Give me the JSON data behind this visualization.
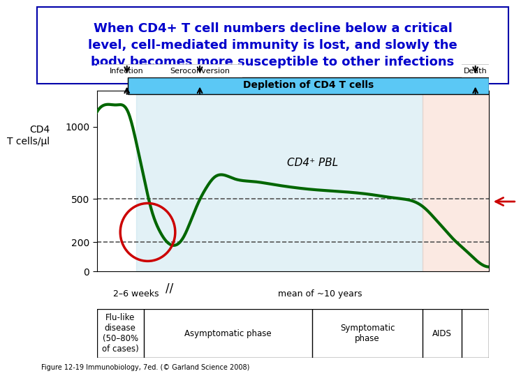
{
  "title_text": "When CD4+ T cell numbers decline below a critical\nlevel, cell-mediated immunity is lost, and slowly the\nbody becomes more susceptible to other infections",
  "title_color": "#0000cc",
  "title_fontsize": 13,
  "bg_color": "#ffffff",
  "ylabel": "CD4\nT cells/μl",
  "yticks": [
    0,
    200,
    500,
    1000
  ],
  "x_label_left": "2–6 weeks",
  "x_label_right": "mean of ~10 years",
  "phase_labels": [
    "Flu-like\ndisease\n(50–80%\nof cases)",
    "Asymptomatic phase",
    "Symptomatic\nphase",
    "AIDS"
  ],
  "depletion_label": "Depletion of CD4 T cells",
  "cd4_pbl_label": "CD4⁺ PBL",
  "infection_label": "Infection",
  "seroconversion_label": "Seroconversion",
  "death_label": "Death",
  "curve_color": "#006600",
  "curve_linewidth": 3,
  "dashed_color": "#555555",
  "light_blue": "#add8e6",
  "light_blue_alpha": 0.5,
  "light_red": "#f4b8a0",
  "arrow_color": "#cc0000",
  "circle_color": "#cc0000",
  "figure_caption": "Figure 12-19 Immunobiology, 7ed. (© Garland Science 2008)"
}
